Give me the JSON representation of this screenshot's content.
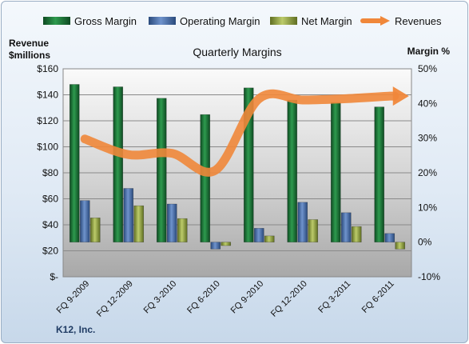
{
  "chart_data": {
    "type": "bar",
    "title": "Quarterly Margins",
    "company": "K12, Inc.",
    "categories": [
      "FQ 9-2009",
      "FQ 12-2009",
      "FQ 3-2010",
      "FQ 6-2010",
      "FQ 9-2010",
      "FQ 12-2010",
      "FQ 3-2011",
      "FQ 6-2011"
    ],
    "series": [
      {
        "name": "Gross Margin",
        "axis": "right",
        "color": "#1f7a3a",
        "values": [
          45.5,
          44.8,
          41.5,
          36.8,
          44.5,
          41.0,
          40.3,
          39.0
        ]
      },
      {
        "name": "Operating Margin",
        "axis": "right",
        "color": "#4a6fa8",
        "values": [
          12.0,
          15.5,
          11.0,
          -2.0,
          4.0,
          11.5,
          8.5,
          2.5
        ]
      },
      {
        "name": "Net Margin",
        "axis": "right",
        "color": "#9aaa4a",
        "values": [
          7.0,
          10.5,
          6.8,
          -1.0,
          1.8,
          6.5,
          4.5,
          -2.0
        ]
      },
      {
        "name": "Revenues",
        "axis": "left",
        "type": "line",
        "color": "#f0873a",
        "values": [
          106,
          94,
          95,
          82,
          137,
          136,
          137,
          139
        ]
      }
    ],
    "left_axis": {
      "title_line1": "Revenue",
      "title_line2": "$millions",
      "min": 0,
      "max": 160,
      "ticks": [
        "$-",
        "$20",
        "$40",
        "$60",
        "$80",
        "$100",
        "$120",
        "$140",
        "$160"
      ]
    },
    "right_axis": {
      "title": "Margin %",
      "min": -10,
      "max": 50,
      "ticks": [
        "-10%",
        "0%",
        "10%",
        "20%",
        "30%",
        "40%",
        "50%"
      ]
    },
    "grid": true,
    "legend_position": "top"
  }
}
